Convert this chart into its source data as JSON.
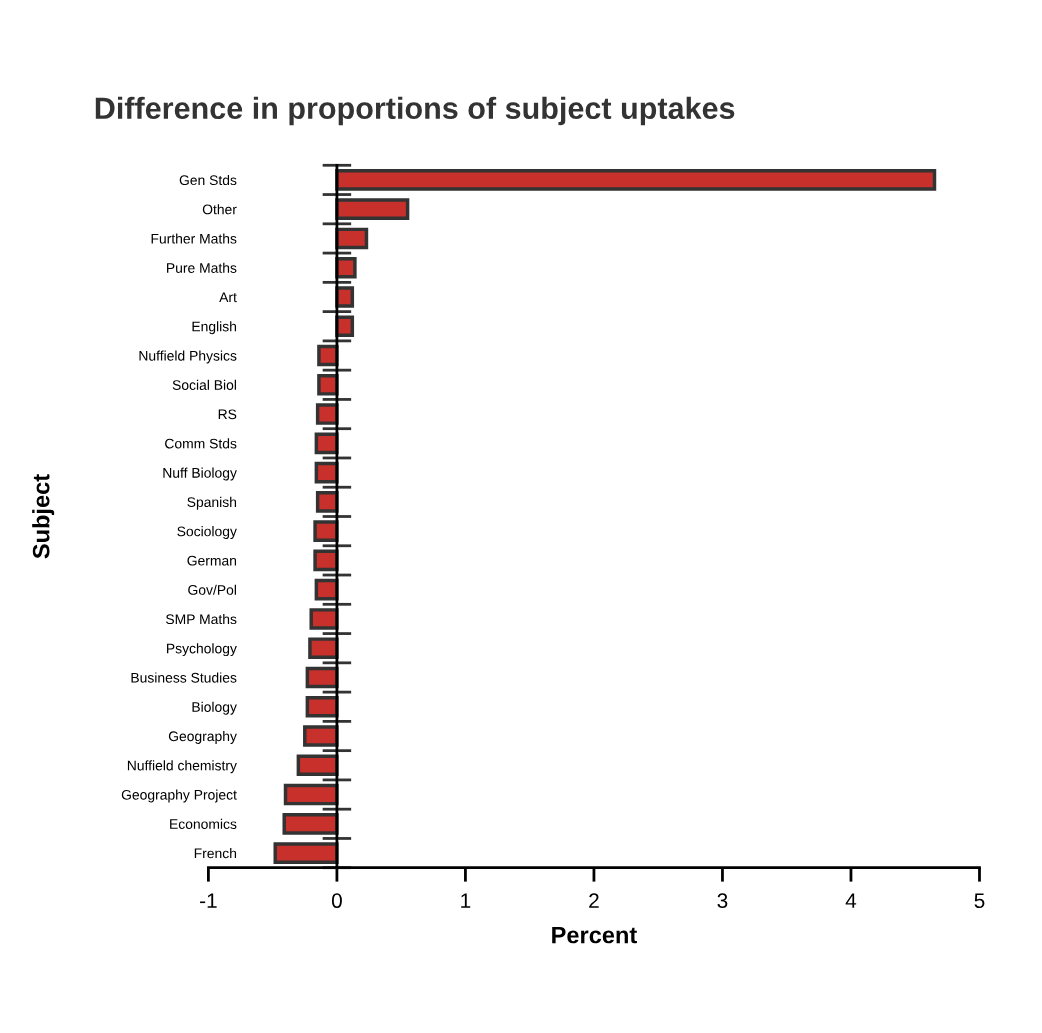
{
  "chart_data": {
    "type": "bar",
    "orientation": "horizontal",
    "title": "Difference in proportions of subject uptakes",
    "xlabel": "Percent",
    "ylabel": "Subject",
    "categories": [
      "Gen Stds",
      "Other",
      "Further Maths",
      "Pure Maths",
      "Art",
      "English",
      "Nuffield Physics",
      "Social Biol",
      "RS",
      "Comm Stds",
      "Nuff Biology",
      "Spanish",
      "Sociology",
      "German",
      "Gov/Pol",
      "SMP Maths",
      "Psychology",
      "Business Studies",
      "Biology",
      "Geography",
      "Nuffield chemistry",
      "Geography Project",
      "Economics",
      "French"
    ],
    "values": [
      4.65,
      0.55,
      0.23,
      0.14,
      0.12,
      0.12,
      -0.14,
      -0.14,
      -0.15,
      -0.16,
      -0.16,
      -0.15,
      -0.17,
      -0.17,
      -0.16,
      -0.2,
      -0.21,
      -0.23,
      -0.23,
      -0.25,
      -0.3,
      -0.4,
      -0.41,
      -0.48
    ],
    "color": "#c8302c",
    "xlim": [
      -1,
      5
    ],
    "xticks": [
      -1,
      0,
      1,
      2,
      3,
      4,
      5
    ],
    "legend": false
  }
}
